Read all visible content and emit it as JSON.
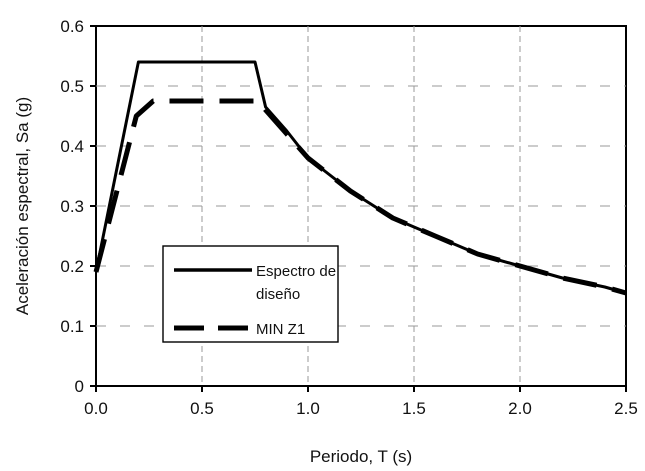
{
  "chart_data": {
    "type": "line",
    "title": "",
    "xlabel": "Periodo, T (s)",
    "ylabel": "Aceleración espectral, Sa (g)",
    "xlim": [
      0,
      2.5
    ],
    "ylim": [
      0,
      0.6
    ],
    "xticks": [
      "0.0",
      "0.5",
      "1.0",
      "1.5",
      "2.0",
      "2.5"
    ],
    "yticks": [
      "0",
      "0.1",
      "0.2",
      "0.3",
      "0.4",
      "0.5",
      "0.6"
    ],
    "grid": true,
    "legend_position": "lower-left",
    "series": [
      {
        "name": "Espectro de diseño",
        "style": "solid",
        "color": "#000000",
        "x": [
          0.0,
          0.2,
          0.75,
          0.8,
          0.9,
          1.0,
          1.2,
          1.4,
          1.6,
          1.8,
          2.0,
          2.2,
          2.4,
          2.5
        ],
        "y": [
          0.19,
          0.54,
          0.54,
          0.465,
          0.425,
          0.38,
          0.325,
          0.28,
          0.25,
          0.22,
          0.2,
          0.18,
          0.165,
          0.155
        ]
      },
      {
        "name": "MIN Z1",
        "style": "dashed",
        "color": "#000000",
        "x": [
          0.0,
          0.19,
          0.27,
          0.77,
          0.8,
          0.9,
          1.0,
          1.2,
          1.4,
          1.6,
          1.8,
          2.0,
          2.2,
          2.4,
          2.5
        ],
        "y": [
          0.19,
          0.45,
          0.475,
          0.475,
          0.46,
          0.42,
          0.38,
          0.325,
          0.28,
          0.25,
          0.22,
          0.2,
          0.18,
          0.165,
          0.155
        ]
      }
    ]
  }
}
